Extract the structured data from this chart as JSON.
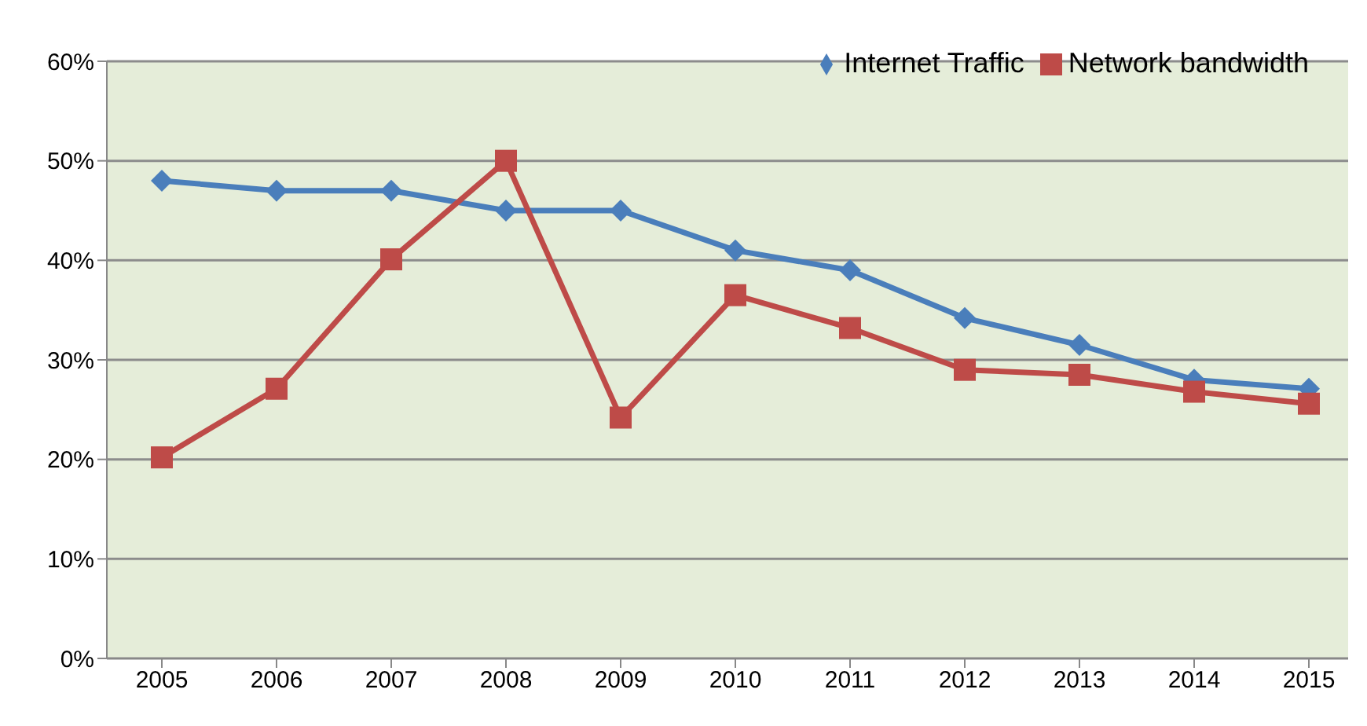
{
  "chart_data": {
    "type": "line",
    "categories": [
      "2005",
      "2006",
      "2007",
      "2008",
      "2009",
      "2010",
      "2011",
      "2012",
      "2013",
      "2014",
      "2015"
    ],
    "series": [
      {
        "name": "Internet Traffic",
        "color": "#4a7ebb",
        "marker": "diamond",
        "values": [
          48,
          47,
          47,
          45,
          45,
          41,
          39,
          34.2,
          31.5,
          28,
          27.1
        ]
      },
      {
        "name": "Network bandwidth",
        "color": "#be4b48",
        "marker": "square",
        "values": [
          20.2,
          27.1,
          40.1,
          50,
          24.2,
          36.5,
          33.2,
          29,
          28.5,
          26.8,
          25.6
        ]
      }
    ],
    "ylim": [
      0,
      60
    ],
    "yticks": [
      {
        "value": 0,
        "label": "0%"
      },
      {
        "value": 10,
        "label": "10%"
      },
      {
        "value": 20,
        "label": "20%"
      },
      {
        "value": 30,
        "label": "30%"
      },
      {
        "value": 40,
        "label": "40%"
      },
      {
        "value": 50,
        "label": "50%"
      },
      {
        "value": 60,
        "label": "60%"
      }
    ],
    "grid": "y",
    "legend": "top right",
    "line_style": "solid"
  }
}
